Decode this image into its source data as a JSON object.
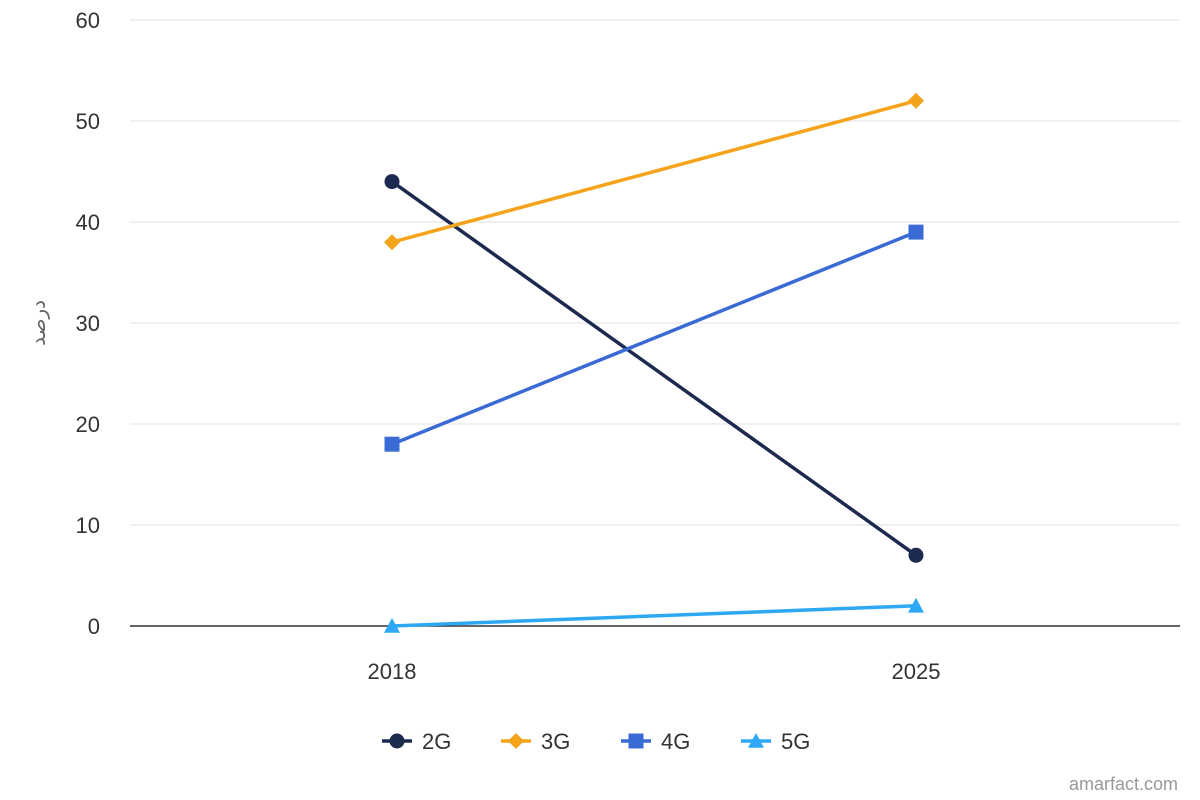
{
  "chart_data": {
    "type": "line",
    "title": "",
    "xlabel": "",
    "ylabel": "درصد",
    "ylim": [
      0,
      60
    ],
    "yticks": [
      0,
      10,
      20,
      30,
      40,
      50,
      60
    ],
    "categories": [
      "2018",
      "2025"
    ],
    "grid": true,
    "legend_position": "bottom",
    "series": [
      {
        "name": "2G",
        "values": [
          44,
          7
        ],
        "color": "#1b2a4e",
        "marker": "circle"
      },
      {
        "name": "3G",
        "values": [
          38,
          52
        ],
        "color": "#f5a31a",
        "marker": "diamond"
      },
      {
        "name": "4G",
        "values": [
          18,
          39
        ],
        "color": "#3a6bd4",
        "marker": "square"
      },
      {
        "name": "5G",
        "values": [
          0,
          2
        ],
        "color": "#2ea8f5",
        "marker": "triangle"
      }
    ]
  },
  "credit": "amarfact.com"
}
